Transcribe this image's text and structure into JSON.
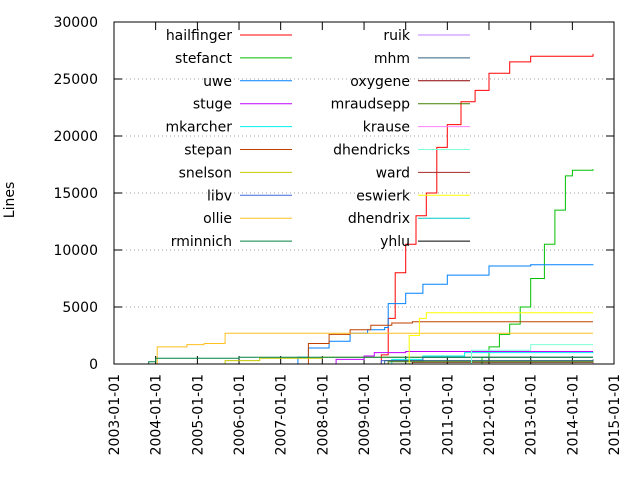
{
  "chart_data": {
    "type": "line",
    "ylabel": "Lines",
    "xlabel": "",
    "ylim": [
      0,
      30000
    ],
    "xlim": [
      "2003-01-01",
      "2015-01-01"
    ],
    "y_ticks": [
      0,
      5000,
      10000,
      15000,
      20000,
      25000,
      30000
    ],
    "x_ticks": [
      "2003-01-01",
      "2004-01-01",
      "2005-01-01",
      "2006-01-01",
      "2007-01-01",
      "2008-01-01",
      "2009-01-01",
      "2010-01-01",
      "2011-01-01",
      "2012-01-01",
      "2013-01-01",
      "2014-01-01",
      "2015-01-01"
    ],
    "grid": "horizontal dotted",
    "legend_position": "top-left",
    "series": [
      {
        "name": "hailfinger",
        "color": "#ff0000",
        "points": [
          [
            "2003-01-01",
            0
          ],
          [
            "2008-07-01",
            0
          ],
          [
            "2009-06-01",
            800
          ],
          [
            "2009-08-01",
            4000
          ],
          [
            "2009-10-01",
            8000
          ],
          [
            "2010-01-01",
            10500
          ],
          [
            "2010-04-01",
            13000
          ],
          [
            "2010-07-01",
            15000
          ],
          [
            "2010-10-01",
            19000
          ],
          [
            "2011-01-01",
            21000
          ],
          [
            "2011-05-01",
            23000
          ],
          [
            "2011-09-01",
            24000
          ],
          [
            "2012-01-01",
            25500
          ],
          [
            "2012-07-01",
            26500
          ],
          [
            "2013-01-01",
            27000
          ],
          [
            "2014-07-01",
            27200
          ]
        ]
      },
      {
        "name": "stefanct",
        "color": "#00c000",
        "points": [
          [
            "2003-01-01",
            0
          ],
          [
            "2011-09-01",
            0
          ],
          [
            "2011-11-01",
            600
          ],
          [
            "2012-01-01",
            1500
          ],
          [
            "2012-04-01",
            2600
          ],
          [
            "2012-07-01",
            3500
          ],
          [
            "2012-10-01",
            5000
          ],
          [
            "2013-01-01",
            7500
          ],
          [
            "2013-05-01",
            10500
          ],
          [
            "2013-08-01",
            13500
          ],
          [
            "2013-11-01",
            16500
          ],
          [
            "2014-01-01",
            17000
          ],
          [
            "2014-07-01",
            17100
          ]
        ]
      },
      {
        "name": "uwe",
        "color": "#0080ff",
        "points": [
          [
            "2003-01-01",
            0
          ],
          [
            "2007-04-01",
            0
          ],
          [
            "2007-06-01",
            600
          ],
          [
            "2007-09-01",
            1400
          ],
          [
            "2008-03-01",
            2000
          ],
          [
            "2008-09-01",
            2700
          ],
          [
            "2009-02-01",
            3000
          ],
          [
            "2009-07-01",
            3200
          ],
          [
            "2009-08-01",
            5300
          ],
          [
            "2010-01-01",
            6200
          ],
          [
            "2010-06-01",
            7000
          ],
          [
            "2011-01-01",
            7800
          ],
          [
            "2012-01-01",
            8600
          ],
          [
            "2013-01-01",
            8700
          ],
          [
            "2014-07-01",
            8750
          ]
        ]
      },
      {
        "name": "stuge",
        "color": "#c000ff",
        "points": [
          [
            "2003-01-01",
            0
          ],
          [
            "2008-04-01",
            0
          ],
          [
            "2008-05-01",
            400
          ],
          [
            "2009-01-01",
            700
          ],
          [
            "2009-04-01",
            1000
          ],
          [
            "2010-01-01",
            1100
          ],
          [
            "2014-07-01",
            1100
          ]
        ]
      },
      {
        "name": "mkarcher",
        "color": "#00eeee",
        "points": [
          [
            "2003-01-01",
            0
          ],
          [
            "2009-06-01",
            0
          ],
          [
            "2009-09-01",
            400
          ],
          [
            "2010-06-01",
            700
          ],
          [
            "2011-06-01",
            1000
          ],
          [
            "2014-07-01",
            1050
          ]
        ]
      },
      {
        "name": "stepan",
        "color": "#c04000",
        "points": [
          [
            "2003-01-01",
            0
          ],
          [
            "2007-07-01",
            0
          ],
          [
            "2007-09-01",
            1800
          ],
          [
            "2008-03-01",
            2600
          ],
          [
            "2008-09-01",
            3000
          ],
          [
            "2009-03-01",
            3400
          ],
          [
            "2009-09-01",
            3600
          ],
          [
            "2010-03-01",
            3700
          ],
          [
            "2014-07-01",
            3700
          ]
        ]
      },
      {
        "name": "snelson",
        "color": "#c8c800",
        "points": [
          [
            "2003-01-01",
            0
          ],
          [
            "2005-07-01",
            0
          ],
          [
            "2005-09-01",
            300
          ],
          [
            "2006-07-01",
            500
          ],
          [
            "2008-01-01",
            600
          ],
          [
            "2014-07-01",
            600
          ]
        ]
      },
      {
        "name": "libv",
        "color": "#4169e1",
        "points": [
          [
            "2003-01-01",
            0
          ],
          [
            "2009-05-01",
            0
          ],
          [
            "2009-06-01",
            300
          ],
          [
            "2010-06-01",
            600
          ],
          [
            "2014-07-01",
            600
          ]
        ]
      },
      {
        "name": "ollie",
        "color": "#ffc020",
        "points": [
          [
            "2003-01-01",
            0
          ],
          [
            "2004-01-01",
            0
          ],
          [
            "2004-01-15",
            1500
          ],
          [
            "2004-10-01",
            1700
          ],
          [
            "2005-03-01",
            1800
          ],
          [
            "2005-09-01",
            2700
          ],
          [
            "2008-01-01",
            2700
          ],
          [
            "2014-07-01",
            2700
          ]
        ]
      },
      {
        "name": "rminnich",
        "color": "#008040",
        "points": [
          [
            "2003-01-01",
            0
          ],
          [
            "2003-10-01",
            0
          ],
          [
            "2003-11-01",
            200
          ],
          [
            "2004-01-01",
            500
          ],
          [
            "2006-01-01",
            600
          ],
          [
            "2014-07-01",
            600
          ]
        ]
      },
      {
        "name": "ruik",
        "color": "#c080ff",
        "points": [
          [
            "2003-01-01",
            0
          ],
          [
            "2014-07-01",
            0
          ]
        ]
      },
      {
        "name": "mhm",
        "color": "#306080",
        "points": [
          [
            "2003-01-01",
            0
          ],
          [
            "2009-06-01",
            0
          ],
          [
            "2009-07-01",
            300
          ],
          [
            "2014-07-01",
            400
          ]
        ]
      },
      {
        "name": "oxygene",
        "color": "#8b0000",
        "points": [
          [
            "2003-01-01",
            0
          ],
          [
            "2010-01-01",
            0
          ],
          [
            "2010-03-01",
            150
          ],
          [
            "2014-07-01",
            200
          ]
        ]
      },
      {
        "name": "mraudsepp",
        "color": "#408000",
        "points": [
          [
            "2003-01-01",
            0
          ],
          [
            "2009-07-01",
            0
          ],
          [
            "2009-08-01",
            200
          ],
          [
            "2014-07-01",
            250
          ]
        ]
      },
      {
        "name": "krause",
        "color": "#ff80ff",
        "points": [
          [
            "2003-01-01",
            0
          ],
          [
            "2014-07-01",
            100
          ]
        ]
      },
      {
        "name": "dhendricks",
        "color": "#7fffd4",
        "points": [
          [
            "2003-01-01",
            0
          ],
          [
            "2011-06-01",
            0
          ],
          [
            "2011-08-01",
            1200
          ],
          [
            "2013-01-01",
            1700
          ],
          [
            "2014-07-01",
            1700
          ]
        ]
      },
      {
        "name": "ward",
        "color": "#a52a2a",
        "points": [
          [
            "2003-01-01",
            0
          ],
          [
            "2014-07-01",
            50
          ]
        ]
      },
      {
        "name": "eswierk",
        "color": "#ffff00",
        "points": [
          [
            "2003-01-01",
            0
          ],
          [
            "2010-01-01",
            0
          ],
          [
            "2010-02-01",
            2500
          ],
          [
            "2010-05-01",
            4000
          ],
          [
            "2010-07-01",
            4500
          ],
          [
            "2014-07-01",
            4500
          ]
        ]
      },
      {
        "name": "dhendrix",
        "color": "#00c8c8",
        "points": [
          [
            "2003-01-01",
            0
          ],
          [
            "2014-07-01",
            50
          ]
        ]
      },
      {
        "name": "yhlu",
        "color": "#000000",
        "points": [
          [
            "2003-01-01",
            0
          ],
          [
            "2014-07-01",
            0
          ]
        ]
      }
    ]
  }
}
